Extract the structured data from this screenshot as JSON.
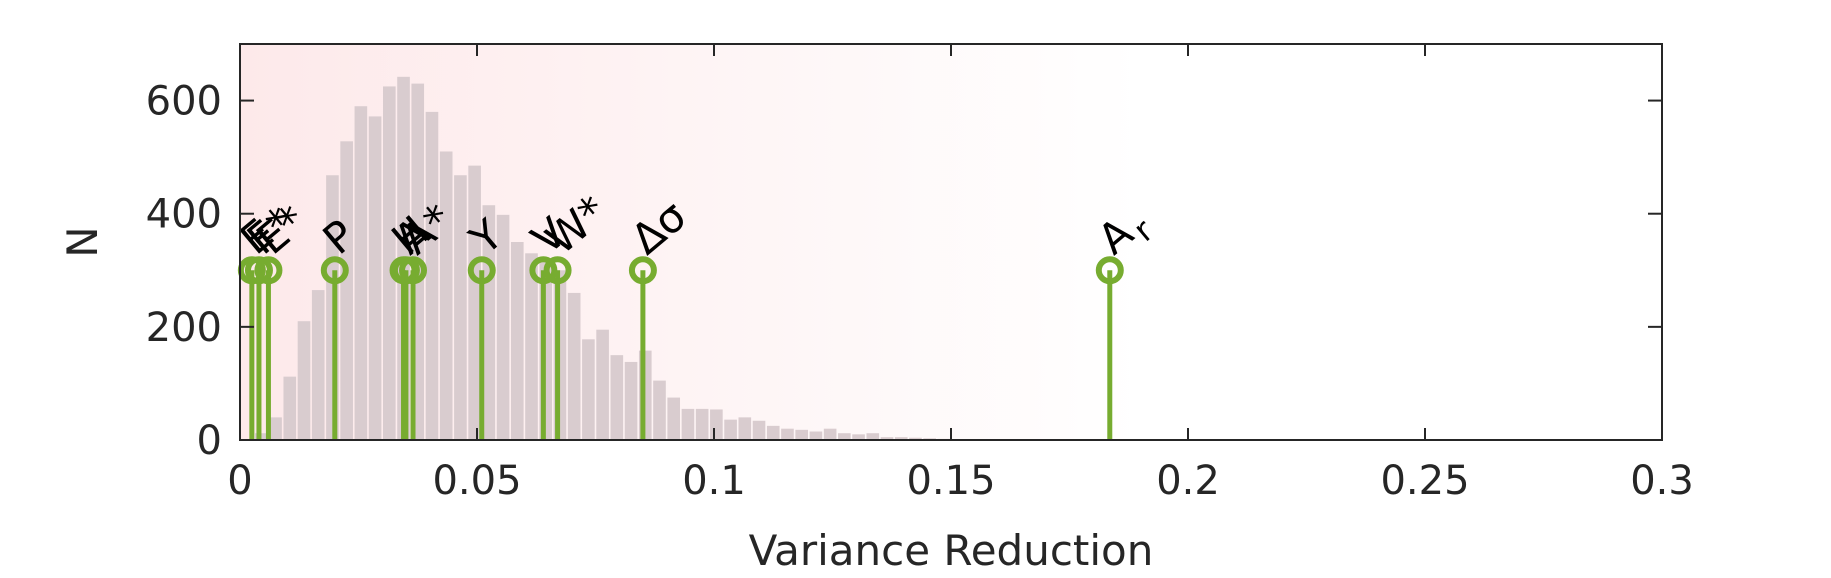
{
  "chart_data": {
    "type": "bar",
    "title": "",
    "xlabel": "Variance Reduction",
    "ylabel": "N",
    "xlim": [
      0,
      0.3
    ],
    "ylim": [
      0,
      700
    ],
    "grid": false,
    "xticks": [
      0,
      0.05,
      0.1,
      0.15,
      0.2,
      0.25,
      0.3
    ],
    "xtick_labels": [
      "0",
      "0.05",
      "0.1",
      "0.15",
      "0.2",
      "0.25",
      "0.3"
    ],
    "yticks": [
      0,
      200,
      400,
      600
    ],
    "ytick_labels": [
      "0",
      "200",
      "400",
      "600"
    ],
    "histogram": {
      "bin_width": 0.003,
      "bin_starts": [
        0.003,
        0.006,
        0.009,
        0.012,
        0.015,
        0.018,
        0.021,
        0.024,
        0.027,
        0.03,
        0.033,
        0.036,
        0.039,
        0.042,
        0.045,
        0.048,
        0.051,
        0.054,
        0.057,
        0.06,
        0.063,
        0.066,
        0.069,
        0.072,
        0.075,
        0.078,
        0.081,
        0.084,
        0.087,
        0.09,
        0.093,
        0.096,
        0.099,
        0.102,
        0.105,
        0.108,
        0.111,
        0.114,
        0.117,
        0.12,
        0.123,
        0.126,
        0.129,
        0.132,
        0.135,
        0.138,
        0.141,
        0.144,
        0.147
      ],
      "counts": [
        12,
        40,
        112,
        210,
        265,
        468,
        528,
        590,
        572,
        625,
        642,
        630,
        580,
        510,
        468,
        485,
        415,
        398,
        350,
        330,
        320,
        300,
        260,
        178,
        195,
        150,
        138,
        158,
        105,
        75,
        55,
        55,
        54,
        36,
        40,
        34,
        25,
        20,
        18,
        15,
        20,
        12,
        10,
        12,
        5,
        5,
        4,
        3,
        2
      ],
      "color": "#d9cccf"
    },
    "stems": {
      "marker_y": 300,
      "color": "#77ac30",
      "items": [
        {
          "label": "E",
          "x": 0.0025
        },
        {
          "label": "F*",
          "x": 0.004
        },
        {
          "label": "E*",
          "x": 0.006
        },
        {
          "label": "P",
          "x": 0.02
        },
        {
          "label": "H",
          "x": 0.0345
        },
        {
          "label": "A",
          "x": 0.035
        },
        {
          "label": "A*",
          "x": 0.0365
        },
        {
          "label": "Y",
          "x": 0.051
        },
        {
          "label": "V",
          "x": 0.064
        },
        {
          "label": "W*",
          "x": 0.067
        },
        {
          "label": "Δσ",
          "x": 0.085
        },
        {
          "label": "A_r",
          "x": 0.1835
        }
      ]
    },
    "background_gradient": {
      "from": "#fde9ea",
      "to": "#ffffff",
      "span_x": [
        0,
        0.19
      ]
    }
  }
}
